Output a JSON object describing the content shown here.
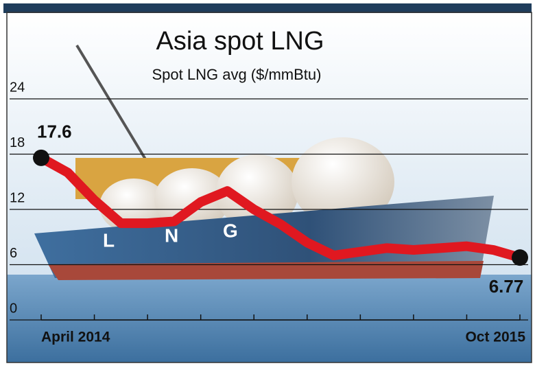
{
  "chart_data": {
    "type": "line",
    "title": "Asia spot LNG",
    "subtitle": "Spot LNG avg ($/mmBtu)",
    "categories": [
      "April 2014",
      null,
      null,
      null,
      null,
      null,
      null,
      null,
      null,
      null,
      null,
      null,
      null,
      null,
      null,
      null,
      null,
      null,
      "Oct 2015"
    ],
    "values": [
      17.6,
      16.0,
      13.0,
      10.5,
      10.5,
      10.7,
      12.8,
      14.0,
      12.0,
      10.4,
      8.4,
      7.0,
      7.4,
      7.8,
      7.6,
      7.8,
      8.0,
      7.6,
      6.77
    ],
    "color": "#e01820",
    "ylim": [
      0,
      24
    ],
    "yticks": [
      0,
      6,
      12,
      18,
      24
    ],
    "grid": true
  }
}
